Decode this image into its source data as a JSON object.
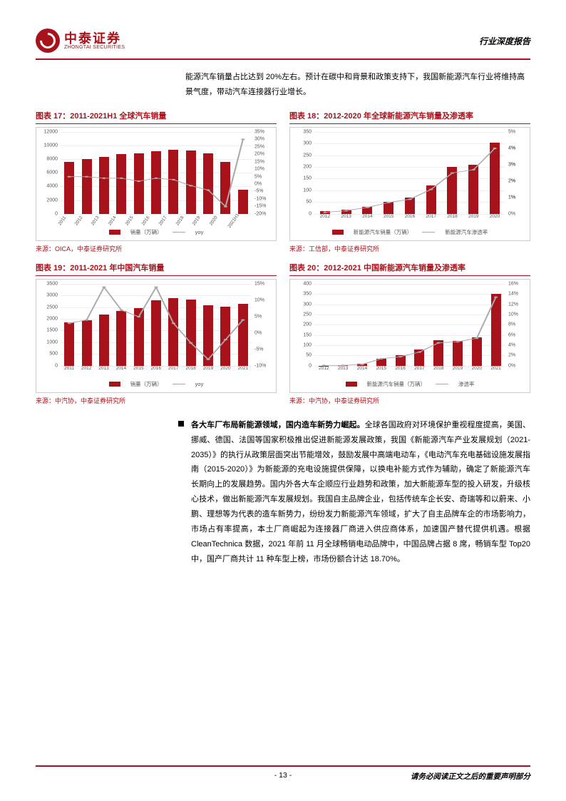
{
  "header": {
    "logo_cn": "中泰证券",
    "logo_en": "ZHONGTAI SECURITIES",
    "doc_type": "行业深度报告"
  },
  "intro_text": "能源汽车销量占比达到 20%左右。预计在碳中和背景和政策支持下，我国新能源汽车行业将维持高景气度，带动汽车连接器行业增长。",
  "charts": {
    "c17": {
      "title": "图表 17：2011-2021H1 全球汽车销量",
      "source": "来源：OICA，中泰证券研究所",
      "categories": [
        "2011",
        "2012",
        "2013",
        "2014",
        "2015",
        "2016",
        "2017",
        "2018",
        "2019",
        "2020",
        "2021H1"
      ],
      "bars": [
        7600,
        8000,
        8300,
        8700,
        8800,
        9200,
        9400,
        9300,
        8900,
        7600,
        3500
      ],
      "y1_ticks": [
        0,
        2000,
        4000,
        6000,
        8000,
        10000,
        12000
      ],
      "line": [
        5,
        5,
        4,
        4,
        2,
        4,
        3,
        -1,
        -4,
        -15,
        30
      ],
      "y2_ticks": [
        -20,
        -15,
        -10,
        -5,
        0,
        5,
        10,
        15,
        20,
        25,
        30,
        35
      ],
      "legend_bar": "销量（万辆）",
      "legend_line": "yoy",
      "bar_color": "#a8121a",
      "line_color": "#aaaaaa",
      "x_rotate": true
    },
    "c18": {
      "title": "图表 18：2012-2020 年全球新能源汽车销量及渗透率",
      "source": "来源：工信部，中泰证券研究所",
      "categories": [
        "2012",
        "2013",
        "2014",
        "2015",
        "2016",
        "2017",
        "2018",
        "2019",
        "2020"
      ],
      "bars": [
        12,
        18,
        30,
        50,
        70,
        120,
        200,
        210,
        305
      ],
      "y1_ticks": [
        0,
        50,
        100,
        150,
        200,
        250,
        300,
        350
      ],
      "line": [
        0.1,
        0.2,
        0.4,
        0.7,
        0.9,
        1.5,
        2.5,
        2.7,
        4.0
      ],
      "y2_ticks": [
        0,
        1,
        1,
        2,
        2,
        3,
        3,
        4,
        4,
        5
      ],
      "y2_labels": [
        "0%",
        "1%",
        "1%",
        "2%",
        "2%",
        "3%",
        "3%",
        "4%",
        "4%",
        "5%"
      ],
      "legend_bar": "新能源汽车销量（万辆）",
      "legend_line": "新能源汽车渗透率",
      "bar_color": "#a8121a",
      "line_color": "#aaaaaa",
      "x_rotate": false
    },
    "c19": {
      "title": "图表 19：2011-2021 年中国汽车销量",
      "source": "来源：中汽协，中泰证券研究所",
      "categories": [
        "2011",
        "2012",
        "2013",
        "2014",
        "2015",
        "2016",
        "2017",
        "2018",
        "2019",
        "2020",
        "2021"
      ],
      "bars": [
        1850,
        1930,
        2200,
        2350,
        2460,
        2800,
        2880,
        2810,
        2580,
        2530,
        2630
      ],
      "y1_ticks": [
        0,
        500,
        1000,
        1500,
        2000,
        2500,
        3000,
        3500
      ],
      "line": [
        3,
        4,
        14,
        7,
        5,
        14,
        3,
        -3,
        -8,
        -2,
        4
      ],
      "y2_ticks": [
        -10,
        -5,
        0,
        5,
        10,
        15
      ],
      "legend_bar": "销量（万辆）",
      "legend_line": "yoy",
      "bar_color": "#a8121a",
      "line_color": "#aaaaaa",
      "x_rotate": false
    },
    "c20": {
      "title": "图表 20：2012-2021 中国新能源汽车销量及渗透率",
      "source": "来源：中汽协，中泰证券研究所",
      "categories": [
        "2012",
        "2013",
        "2014",
        "2015",
        "2016",
        "2017",
        "2018",
        "2019",
        "2020",
        "2021"
      ],
      "bars": [
        1,
        2,
        8,
        33,
        51,
        78,
        126,
        121,
        137,
        352
      ],
      "y1_ticks": [
        0,
        50,
        100,
        150,
        200,
        250,
        300,
        350,
        400
      ],
      "line": [
        0.1,
        0.1,
        0.3,
        1.4,
        1.8,
        2.7,
        4.5,
        4.7,
        5.4,
        13.4
      ],
      "y2_ticks": [
        0,
        2,
        4,
        6,
        8,
        10,
        12,
        14,
        16
      ],
      "y2_labels": [
        "0%",
        "2%",
        "4%",
        "6%",
        "8%",
        "10%",
        "12%",
        "14%",
        "16%"
      ],
      "legend_bar": "新能源汽车销量（万辆）",
      "legend_line": "渗透率",
      "bar_color": "#a8121a",
      "line_color": "#aaaaaa",
      "x_rotate": false
    }
  },
  "body": {
    "bold": "各大车厂布局新能源领域，国内造车新势力崛起。",
    "text": "全球各国政府对环境保护重视程度提高，美国、挪威、德国、法国等国家积极推出促进新能源发展政策，我国《新能源汽车产业发展规划（2021-2035）》的执行从政策层面突出节能增效，鼓励发展中高端电动车，《电动汽车充电基础设施发展指南（2015-2020）》为新能源的充电设施提供保障，以换电补能方式作为辅助，确定了新能源汽车长期向上的发展趋势。国内外各大车企顺应行业趋势和政策，加大新能源车型的投入研发，升级核心技术，做出新能源汽车发展规划。我国自主品牌企业，包括传统车企长安、奇瑞等和以蔚来、小鹏、理想等为代表的造车新势力，纷纷发力新能源汽车领域，扩大了自主品牌车企的市场影响力，市场占有率提高，本土厂商崛起为连接器厂商进入供应商体系，加速国产替代提供机遇。根据 CleanTechnica 数据，2021 年前 11 月全球畅销电动品牌中，中国品牌占据 8 席，畅销车型 Top20 中，国产厂商共计 11 种车型上榜，市场份额合计达 18.70%。"
  },
  "footer": {
    "page": "- 13 -",
    "disclaimer": "请务必阅读正文之后的重要声明部分"
  }
}
